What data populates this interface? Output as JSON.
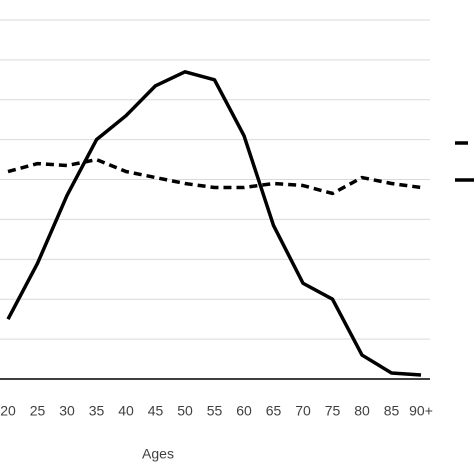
{
  "chart_data": {
    "type": "line",
    "x_label": "Ages",
    "categories": [
      "20",
      "25",
      "30",
      "35",
      "40",
      "45",
      "50",
      "55",
      "60",
      "65",
      "70",
      "75",
      "80",
      "85",
      "90+"
    ],
    "series": [
      {
        "color": "#000000",
        "dashed": false,
        "values": [
          1.5,
          2.9,
          4.6,
          6.0,
          6.6,
          7.35,
          7.7,
          7.5,
          6.1,
          3.85,
          2.4,
          2.0,
          0.6,
          0.15,
          0.1
        ]
      },
      {
        "color": "#000000",
        "dashed": true,
        "values": [
          5.2,
          5.4,
          5.35,
          5.5,
          5.2,
          5.05,
          4.9,
          4.8,
          4.8,
          4.9,
          4.85,
          4.65,
          5.05,
          4.9,
          4.8
        ]
      }
    ],
    "ylim": [
      0,
      9.5
    ],
    "yticks": [
      0,
      1,
      2,
      3,
      4,
      5,
      6,
      7,
      8,
      9
    ],
    "grid": true
  }
}
